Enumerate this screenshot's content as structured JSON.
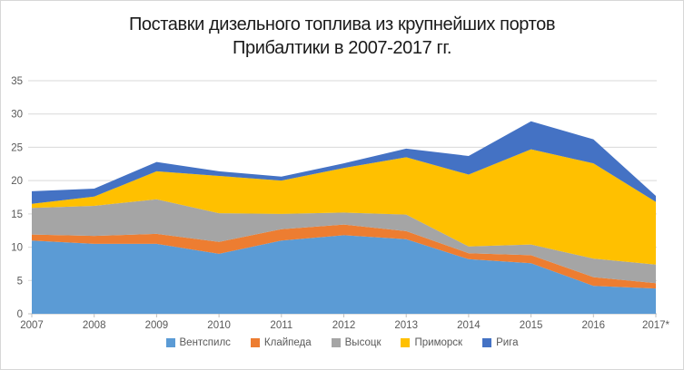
{
  "chart": {
    "title": "Поставки дизельного топлива из крупнейших портов Прибалтики в 2007-2017 гг.",
    "title_lines": [
      "Поставки дизельного топлива из крупнейших портов",
      "Прибалтики в 2007-2017 гг."
    ]
  },
  "chart_data": {
    "type": "area",
    "stacked": true,
    "title": "Поставки дизельного топлива из крупнейших портов Прибалтики в 2007-2017 гг.",
    "categories": [
      "2007",
      "2008",
      "2009",
      "2010",
      "2011",
      "2012",
      "2013",
      "2014",
      "2015",
      "2016",
      "2017*"
    ],
    "series": [
      {
        "name": "Вентспилс",
        "color": "#5B9BD5",
        "values": [
          11.0,
          10.5,
          10.5,
          9.0,
          11.0,
          11.8,
          11.2,
          8.2,
          7.6,
          4.2,
          3.8
        ]
      },
      {
        "name": "Клайпеда",
        "color": "#ED7D31",
        "values": [
          0.9,
          1.2,
          1.5,
          1.8,
          1.7,
          1.6,
          1.2,
          0.9,
          1.2,
          1.3,
          0.8
        ]
      },
      {
        "name": "Высоцк",
        "color": "#A5A5A5",
        "values": [
          4.0,
          4.5,
          5.2,
          4.3,
          2.3,
          1.8,
          2.5,
          1.0,
          1.6,
          2.8,
          2.8
        ]
      },
      {
        "name": "Приморск",
        "color": "#FFC000",
        "values": [
          0.6,
          1.4,
          4.2,
          5.6,
          5.0,
          6.7,
          8.6,
          10.8,
          14.3,
          14.3,
          9.4
        ]
      },
      {
        "name": "Рига",
        "color": "#4472C4",
        "values": [
          1.9,
          1.2,
          1.4,
          0.7,
          0.6,
          0.7,
          1.3,
          2.8,
          4.2,
          3.6,
          0.9
        ]
      }
    ],
    "xlabel": "",
    "ylabel": "",
    "ylim": [
      0,
      35
    ],
    "ytick_step": 5,
    "grid": true,
    "legend_position": "bottom",
    "axis_text_color": "#595959",
    "gridline_color": "#d9d9d9",
    "axis_line_color": "#bfbfbf"
  }
}
